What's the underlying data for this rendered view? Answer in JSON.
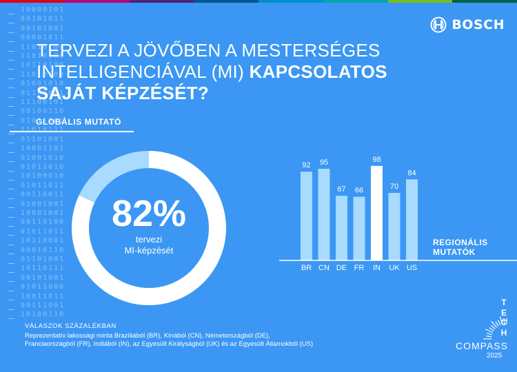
{
  "brand": {
    "name": "BOSCH"
  },
  "title": {
    "regular": "TERVEZI A JÖVŐBEN A MESTERSÉGES INTELLIGENCIÁVAL (MI)",
    "bold": "KAPCSOLATOS SAJÁT KÉPZÉSÉT?"
  },
  "global": {
    "label": "GLOBÁLIS MUTATÓ",
    "percent_text": "82%",
    "caption_line1": "tervezi",
    "caption_line2": "MI-képzését"
  },
  "regional": {
    "label_line1": "REGIONÁLIS",
    "label_line2": "MUTATÓK"
  },
  "footer": {
    "title": "VÁLASZOK SZÁZALÉKBAN",
    "line1": "Reprezentatív lakossági minta Brazíliából (BR), Kínából (CN), Németországból (DE),",
    "line2": "Franciaországból (FR), Indiából (IN), az Egyesült Királyságból (UK) és az Egyesült Államokból (US)"
  },
  "badge": {
    "word1": "TECH",
    "word2": "COMPASS",
    "year": "2025"
  },
  "binary_rows": [
    "10000101",
    "00101011",
    "00101001",
    "00001011",
    "11010100",
    "11010100",
    "10110100",
    "11010100",
    "01001010",
    "01101001",
    "11100101",
    "00100110",
    "01011001",
    "11010111",
    "01101001",
    "10001101",
    "01001010",
    "01011010",
    "10100010",
    "01011011",
    "00110011",
    "01001001",
    "10001001",
    "00110100",
    "01011011",
    "10110001",
    "00010110",
    "01101001",
    "10110111",
    "00101001",
    "01011000",
    "10011011",
    "00111001",
    "10100110"
  ],
  "colors": {
    "background": "#3b97f3",
    "ring_light": "#a9daff",
    "bar_light": "#a9daff",
    "bar_highlight": "#ffffff",
    "topbar": [
      "#e20015",
      "#b90276",
      "#50237f",
      "#005691",
      "#008ecf",
      "#00a8b0",
      "#78be20",
      "#006249"
    ]
  },
  "chart_data": [
    {
      "type": "pie",
      "title": "GLOBÁLIS MUTATÓ",
      "slices": [
        {
          "label": "tervezi MI-képzését",
          "value": 82
        },
        {
          "label": "",
          "value": 18
        }
      ]
    },
    {
      "type": "bar",
      "title": "REGIONÁLIS MUTATÓK",
      "categories": [
        "BR",
        "CN",
        "DE",
        "FR",
        "IN",
        "UK",
        "US"
      ],
      "values": [
        92,
        95,
        67,
        66,
        98,
        70,
        84
      ],
      "highlight": "IN",
      "ylim": [
        0,
        100
      ],
      "grid": false,
      "xlabel": "",
      "ylabel": ""
    }
  ]
}
